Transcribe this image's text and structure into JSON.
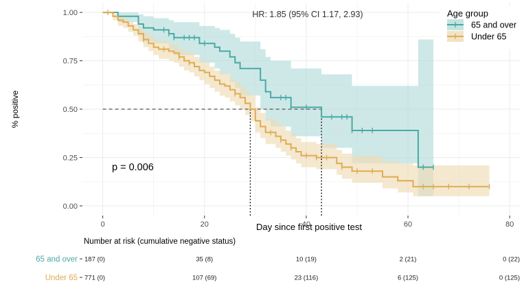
{
  "chart_data": {
    "type": "line",
    "subtype": "kaplan-meier",
    "hr_text": "HR: 1.85 (95% CI 1.17, 2.93)",
    "p_text": "p = 0.006",
    "xlabel": "Day since first positive test",
    "ylabel": "% positive",
    "xlim": [
      -4,
      82
    ],
    "ylim": [
      -0.05,
      1.05
    ],
    "x_ticks": [
      0,
      20,
      40,
      60,
      80
    ],
    "y_ticks": [
      0,
      0.25,
      0.5,
      0.75,
      1.0
    ],
    "y_tick_labels": [
      "0.00",
      "0.25",
      "0.50",
      "0.75",
      "1.00"
    ],
    "grid": true,
    "legend": {
      "title": "Age group",
      "position": "top-right",
      "entries": [
        {
          "label": "65 and over",
          "color": "#4aa9a4"
        },
        {
          "label": "Under 65",
          "color": "#e0ab52"
        }
      ]
    },
    "median_lines": {
      "y": 0.5,
      "x_values": [
        29,
        43
      ]
    },
    "series": [
      {
        "name": "65 and over",
        "color": "#4aa9a4",
        "ci_color": "#b4dcdb",
        "steps": [
          [
            0,
            1.0
          ],
          [
            3,
            0.98
          ],
          [
            7,
            0.94
          ],
          [
            8,
            0.92
          ],
          [
            10,
            0.91
          ],
          [
            13,
            0.89
          ],
          [
            14,
            0.87
          ],
          [
            19,
            0.84
          ],
          [
            21,
            0.84
          ],
          [
            22,
            0.82
          ],
          [
            23,
            0.8
          ],
          [
            25,
            0.77
          ],
          [
            26,
            0.74
          ],
          [
            27,
            0.71
          ],
          [
            31,
            0.65
          ],
          [
            32,
            0.59
          ],
          [
            33,
            0.56
          ],
          [
            37,
            0.51
          ],
          [
            43,
            0.46
          ],
          [
            49,
            0.39
          ],
          [
            62,
            0.2
          ],
          [
            65,
            0.2
          ]
        ],
        "ci_upper": [
          [
            0,
            1.0
          ],
          [
            3,
            1.0
          ],
          [
            7,
            0.99
          ],
          [
            8,
            0.98
          ],
          [
            10,
            0.97
          ],
          [
            13,
            0.96
          ],
          [
            14,
            0.95
          ],
          [
            19,
            0.93
          ],
          [
            22,
            0.92
          ],
          [
            23,
            0.91
          ],
          [
            25,
            0.89
          ],
          [
            26,
            0.87
          ],
          [
            27,
            0.85
          ],
          [
            31,
            0.81
          ],
          [
            32,
            0.77
          ],
          [
            33,
            0.75
          ],
          [
            37,
            0.71
          ],
          [
            43,
            0.68
          ],
          [
            49,
            0.62
          ],
          [
            62,
            0.86
          ],
          [
            65,
            0.86
          ]
        ],
        "ci_lower": [
          [
            0,
            1.0
          ],
          [
            3,
            0.95
          ],
          [
            7,
            0.88
          ],
          [
            8,
            0.85
          ],
          [
            10,
            0.84
          ],
          [
            13,
            0.81
          ],
          [
            14,
            0.78
          ],
          [
            19,
            0.74
          ],
          [
            22,
            0.71
          ],
          [
            23,
            0.68
          ],
          [
            25,
            0.64
          ],
          [
            26,
            0.61
          ],
          [
            27,
            0.57
          ],
          [
            31,
            0.5
          ],
          [
            32,
            0.44
          ],
          [
            33,
            0.41
          ],
          [
            37,
            0.36
          ],
          [
            43,
            0.3
          ],
          [
            49,
            0.22
          ],
          [
            62,
            0.05
          ],
          [
            65,
            0.05
          ]
        ],
        "censor_x": [
          12,
          13,
          14,
          16,
          17,
          18,
          20,
          35,
          36,
          37,
          40,
          45,
          47,
          48,
          49,
          51,
          53,
          63,
          65
        ]
      },
      {
        "name": "Under 65",
        "color": "#e0ab52",
        "ci_color": "#eedcb6",
        "steps": [
          [
            0,
            1.0
          ],
          [
            2,
            0.98
          ],
          [
            3,
            0.96
          ],
          [
            4,
            0.95
          ],
          [
            5,
            0.93
          ],
          [
            6,
            0.91
          ],
          [
            7,
            0.89
          ],
          [
            8,
            0.86
          ],
          [
            9,
            0.84
          ],
          [
            10,
            0.82
          ],
          [
            11,
            0.81
          ],
          [
            13,
            0.8
          ],
          [
            14,
            0.79
          ],
          [
            15,
            0.77
          ],
          [
            16,
            0.75
          ],
          [
            17,
            0.74
          ],
          [
            18,
            0.72
          ],
          [
            19,
            0.7
          ],
          [
            20,
            0.69
          ],
          [
            21,
            0.67
          ],
          [
            22,
            0.65
          ],
          [
            23,
            0.63
          ],
          [
            24,
            0.62
          ],
          [
            25,
            0.6
          ],
          [
            26,
            0.58
          ],
          [
            27,
            0.56
          ],
          [
            28,
            0.53
          ],
          [
            29,
            0.5
          ],
          [
            30,
            0.44
          ],
          [
            31,
            0.41
          ],
          [
            32,
            0.38
          ],
          [
            34,
            0.36
          ],
          [
            35,
            0.34
          ],
          [
            36,
            0.32
          ],
          [
            37,
            0.3
          ],
          [
            38,
            0.28
          ],
          [
            39,
            0.26
          ],
          [
            42,
            0.25
          ],
          [
            46,
            0.22
          ],
          [
            47,
            0.2
          ],
          [
            49,
            0.18
          ],
          [
            55,
            0.15
          ],
          [
            58,
            0.13
          ],
          [
            61,
            0.1
          ],
          [
            76,
            0.1
          ]
        ],
        "ci_upper": [
          [
            0,
            1.0
          ],
          [
            2,
            0.99
          ],
          [
            3,
            0.98
          ],
          [
            4,
            0.97
          ],
          [
            5,
            0.95
          ],
          [
            6,
            0.94
          ],
          [
            7,
            0.92
          ],
          [
            8,
            0.9
          ],
          [
            9,
            0.88
          ],
          [
            10,
            0.86
          ],
          [
            11,
            0.85
          ],
          [
            13,
            0.84
          ],
          [
            14,
            0.83
          ],
          [
            15,
            0.81
          ],
          [
            16,
            0.8
          ],
          [
            17,
            0.79
          ],
          [
            18,
            0.77
          ],
          [
            19,
            0.75
          ],
          [
            20,
            0.74
          ],
          [
            21,
            0.72
          ],
          [
            22,
            0.7
          ],
          [
            23,
            0.69
          ],
          [
            24,
            0.68
          ],
          [
            25,
            0.66
          ],
          [
            26,
            0.64
          ],
          [
            27,
            0.62
          ],
          [
            28,
            0.59
          ],
          [
            29,
            0.57
          ],
          [
            30,
            0.51
          ],
          [
            31,
            0.48
          ],
          [
            32,
            0.45
          ],
          [
            34,
            0.43
          ],
          [
            35,
            0.41
          ],
          [
            36,
            0.39
          ],
          [
            37,
            0.37
          ],
          [
            38,
            0.35
          ],
          [
            39,
            0.33
          ],
          [
            42,
            0.32
          ],
          [
            46,
            0.29
          ],
          [
            47,
            0.27
          ],
          [
            49,
            0.26
          ],
          [
            55,
            0.23
          ],
          [
            58,
            0.22
          ],
          [
            61,
            0.21
          ],
          [
            76,
            0.21
          ]
        ],
        "ci_lower": [
          [
            0,
            1.0
          ],
          [
            2,
            0.96
          ],
          [
            3,
            0.93
          ],
          [
            4,
            0.92
          ],
          [
            5,
            0.9
          ],
          [
            6,
            0.88
          ],
          [
            7,
            0.85
          ],
          [
            8,
            0.82
          ],
          [
            9,
            0.8
          ],
          [
            10,
            0.78
          ],
          [
            11,
            0.76
          ],
          [
            13,
            0.75
          ],
          [
            14,
            0.74
          ],
          [
            15,
            0.72
          ],
          [
            16,
            0.7
          ],
          [
            17,
            0.69
          ],
          [
            18,
            0.67
          ],
          [
            19,
            0.65
          ],
          [
            20,
            0.63
          ],
          [
            21,
            0.61
          ],
          [
            22,
            0.59
          ],
          [
            23,
            0.57
          ],
          [
            24,
            0.56
          ],
          [
            25,
            0.54
          ],
          [
            26,
            0.52
          ],
          [
            27,
            0.5
          ],
          [
            28,
            0.47
          ],
          [
            29,
            0.44
          ],
          [
            30,
            0.38
          ],
          [
            31,
            0.35
          ],
          [
            32,
            0.32
          ],
          [
            34,
            0.3
          ],
          [
            35,
            0.28
          ],
          [
            36,
            0.26
          ],
          [
            37,
            0.24
          ],
          [
            38,
            0.22
          ],
          [
            39,
            0.2
          ],
          [
            42,
            0.19
          ],
          [
            46,
            0.16
          ],
          [
            47,
            0.14
          ],
          [
            49,
            0.12
          ],
          [
            55,
            0.09
          ],
          [
            58,
            0.07
          ],
          [
            61,
            0.05
          ],
          [
            76,
            0.05
          ]
        ],
        "censor_x": [
          1,
          8,
          12,
          15,
          17,
          26,
          33,
          35,
          37,
          40,
          42,
          44,
          47,
          50,
          53,
          63,
          65,
          68,
          72,
          76
        ]
      }
    ],
    "risk_table": {
      "title": "Number at risk (cumulative negative status)",
      "times": [
        0,
        20,
        40,
        60,
        80
      ],
      "rows": [
        {
          "label": "65 and over",
          "color": "#4aa9a4",
          "values": [
            "187 (0)",
            "35 (8)",
            "10 (19)",
            "2 (21)",
            "0 (22)"
          ]
        },
        {
          "label": "Under 65",
          "color": "#e0ab52",
          "values": [
            "771 (0)",
            "107 (69)",
            "23 (116)",
            "6 (125)",
            "0 (125)"
          ]
        }
      ]
    }
  }
}
